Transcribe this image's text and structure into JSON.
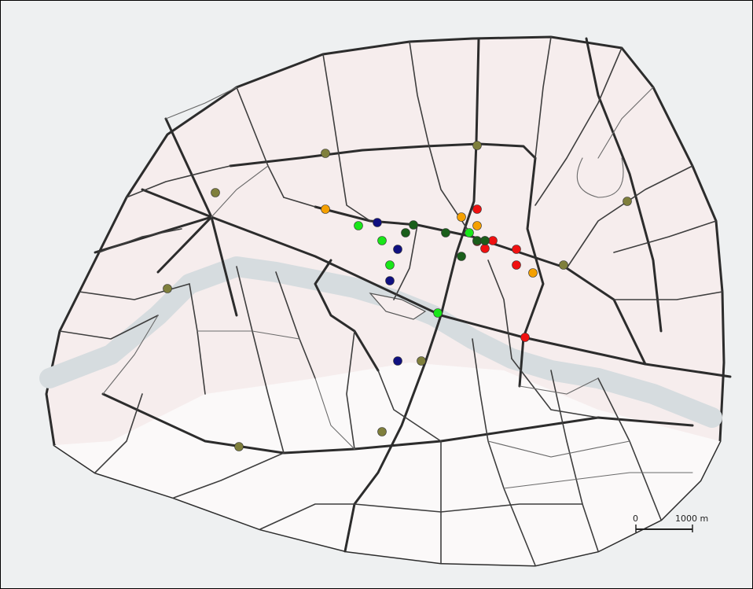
{
  "scale_bar": {
    "start_label": "0",
    "end_label": "1000 m"
  },
  "colors": {
    "background": "#eef0f1",
    "city_fill": "#f6eded",
    "city_fill_south": "#fbf9f9",
    "river": "#d6dcdf",
    "road": "#2c2c2c"
  },
  "marker_groups": [
    {
      "name": "olive",
      "color": "#7f7f3c",
      "count": 11
    },
    {
      "name": "orange",
      "color": "#f5a000",
      "count": 4
    },
    {
      "name": "red",
      "color": "#f01010",
      "count": 7
    },
    {
      "name": "bright-green",
      "color": "#19e619",
      "count": 6
    },
    {
      "name": "dark-green",
      "color": "#1a5e1a",
      "count": 6
    },
    {
      "name": "navy",
      "color": "#101080",
      "count": 4
    }
  ]
}
